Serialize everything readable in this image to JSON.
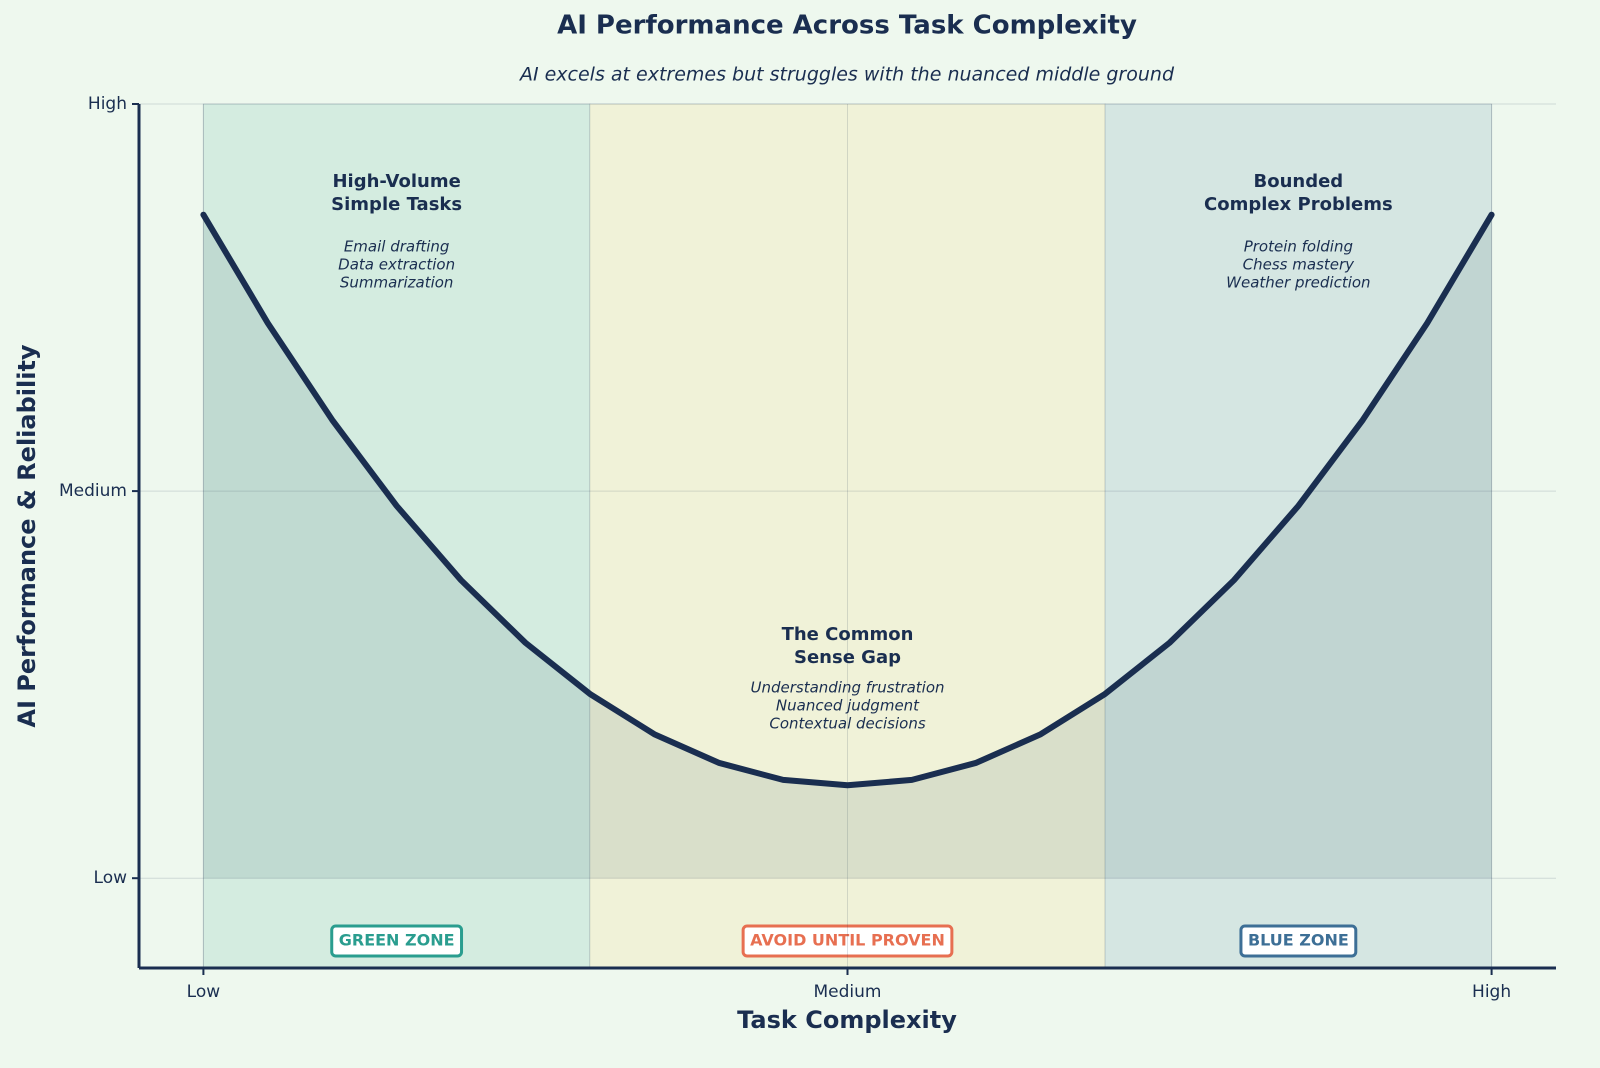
{
  "chart_data": {
    "type": "line",
    "title": "AI Performance Across Task Complexity",
    "subtitle": "AI excels at extremes but struggles with the nuanced middle ground",
    "xlabel": "Task Complexity",
    "ylabel": "AI Performance & Reliability",
    "x": [
      0,
      0.5,
      1,
      1.5,
      2,
      2.5,
      3,
      3.5,
      4,
      4.5,
      5,
      5.5,
      6,
      6.5,
      7,
      7.5,
      8,
      8.5,
      9,
      9.5,
      10
    ],
    "values": [
      8.57,
      7.17,
      5.92,
      4.81,
      3.85,
      3.04,
      2.38,
      1.86,
      1.49,
      1.27,
      1.2,
      1.27,
      1.49,
      1.86,
      2.38,
      3.04,
      3.85,
      4.81,
      5.92,
      7.17,
      8.57
    ],
    "color": "#1a2e50",
    "xlim": [
      -0.5,
      10.5
    ],
    "ylim": [
      -1.16,
      10
    ],
    "xticks": [
      {
        "value": 0,
        "label": "Low"
      },
      {
        "value": 5,
        "label": "Medium"
      },
      {
        "value": 10,
        "label": "High"
      }
    ],
    "yticks": [
      {
        "value": 0,
        "label": "Low"
      },
      {
        "value": 5,
        "label": "Medium"
      },
      {
        "value": 10,
        "label": "High"
      }
    ],
    "grid": true,
    "zones": [
      {
        "xrange": [
          0,
          3
        ],
        "color": "#d4ece0",
        "label": "GREEN ZONE",
        "label_color": "#2a9d8f",
        "title": [
          "High-Volume",
          "Simple Tasks"
        ],
        "items": [
          "Email drafting",
          "Data extraction",
          "Summarization"
        ]
      },
      {
        "xrange": [
          3,
          7
        ],
        "color": "#f0f2d8",
        "label": "AVOID UNTIL PROVEN",
        "label_color": "#e76f51",
        "title": [
          "The Common",
          "Sense Gap"
        ],
        "items": [
          "Understanding frustration",
          "Nuanced judgment",
          "Contextual decisions"
        ]
      },
      {
        "xrange": [
          7,
          10
        ],
        "color": "#d5e6e2",
        "label": "BLUE ZONE",
        "label_color": "#3d6f96",
        "title": [
          "Bounded",
          "Complex Problems"
        ],
        "items": [
          "Protein folding",
          "Chess mastery",
          "Weather prediction"
        ]
      }
    ]
  }
}
